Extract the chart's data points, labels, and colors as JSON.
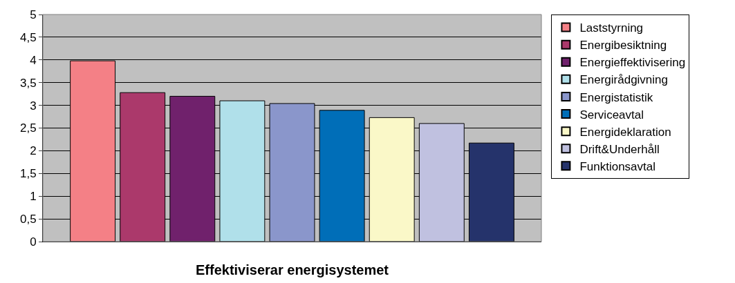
{
  "chart_data": {
    "type": "bar",
    "xlabel": "Effektiviserar energisystemet",
    "categories": [
      null
    ],
    "series": [
      {
        "name": "Laststyrning",
        "color": "#f48086",
        "values": [
          3.98
        ]
      },
      {
        "name": "Energibesiktning",
        "color": "#ab396b",
        "values": [
          3.28
        ]
      },
      {
        "name": "Energieffektivisering",
        "color": "#70216c",
        "values": [
          3.2
        ]
      },
      {
        "name": "Energirådgivning",
        "color": "#b0e0ea",
        "values": [
          3.1
        ]
      },
      {
        "name": "Energistatistik",
        "color": "#8a96cb",
        "values": [
          3.04
        ]
      },
      {
        "name": "Serviceavtal",
        "color": "#006eb8",
        "values": [
          2.89
        ]
      },
      {
        "name": "Energideklaration",
        "color": "#faf8c8",
        "values": [
          2.73
        ]
      },
      {
        "name": "Drift&Underhåll",
        "color": "#c0c1e0",
        "values": [
          2.6
        ]
      },
      {
        "name": "Funktionsavtal",
        "color": "#25336b",
        "values": [
          2.17
        ]
      }
    ],
    "ylim": [
      0,
      5
    ],
    "yticks": [
      0,
      {
        "value": 0.5,
        "label": "0,5"
      },
      1,
      {
        "value": 1.5,
        "label": "1,5"
      },
      2,
      {
        "value": 2.5,
        "label": "2,5"
      },
      3,
      {
        "value": 3.5,
        "label": "3,5"
      },
      4,
      {
        "value": 4.5,
        "label": "4,5"
      },
      5
    ],
    "grid": "y",
    "legend": "right"
  }
}
